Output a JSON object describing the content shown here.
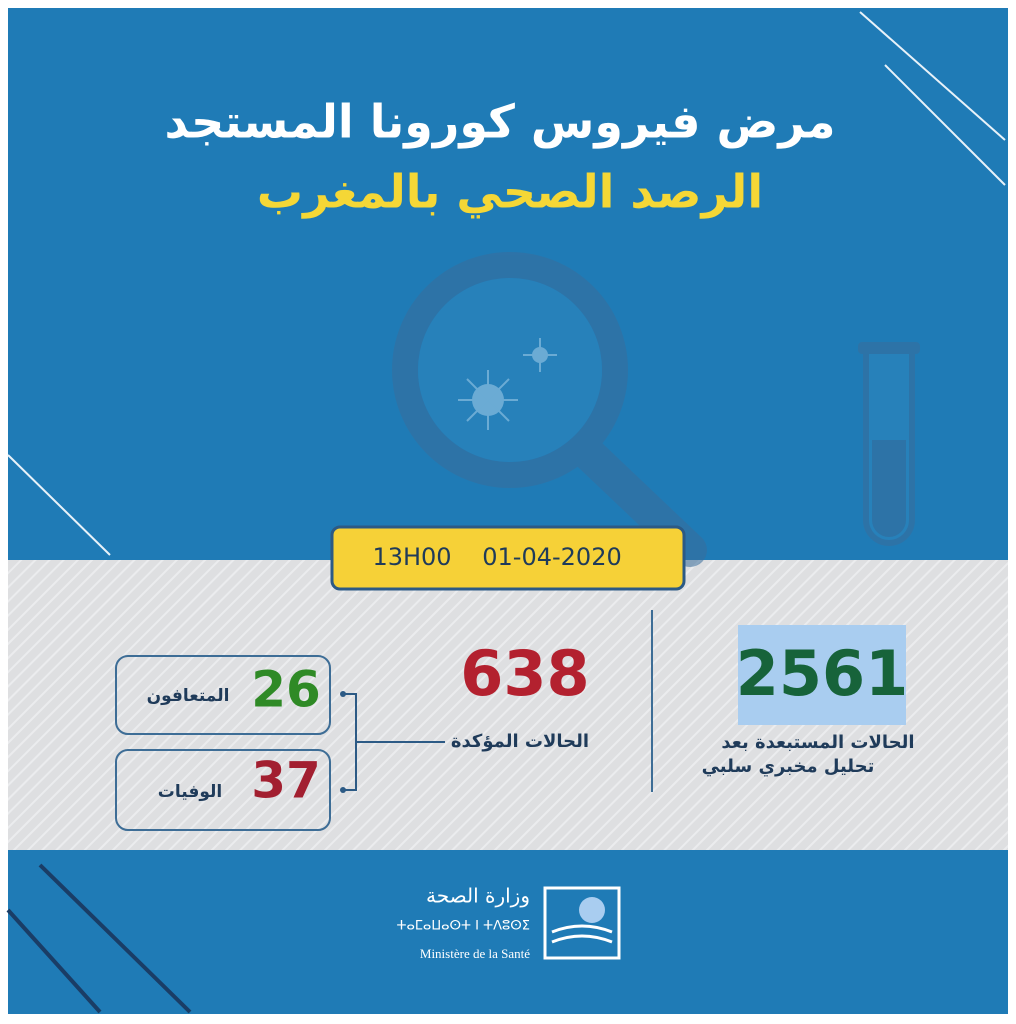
{
  "header": {
    "title": "مرض فيروس كورونا المستجد",
    "subtitle": "الرصد الصحي بالمغرب"
  },
  "date": {
    "time": "13H00",
    "date": "01-04-2020"
  },
  "stats": {
    "excluded": {
      "value": "2561",
      "label_lines": [
        "الحالات المستبعدة بعد",
        "تحليل مخبري سلبي"
      ]
    },
    "confirmed": {
      "value": "638",
      "label": "الحالات المؤكدة"
    },
    "recovered": {
      "value": "26",
      "label": "المتعافون"
    },
    "deaths": {
      "value": "37",
      "label": "الوفيات"
    }
  },
  "footer": {
    "ministry_ar": "وزارة الصحة",
    "ministry_tz": "ⵜⴰⵎⴰⵡⴰⵙⵜ ⵏ ⵜⴷⵓⵙⵉ",
    "ministry_fr": "Ministère de la Santé"
  }
}
